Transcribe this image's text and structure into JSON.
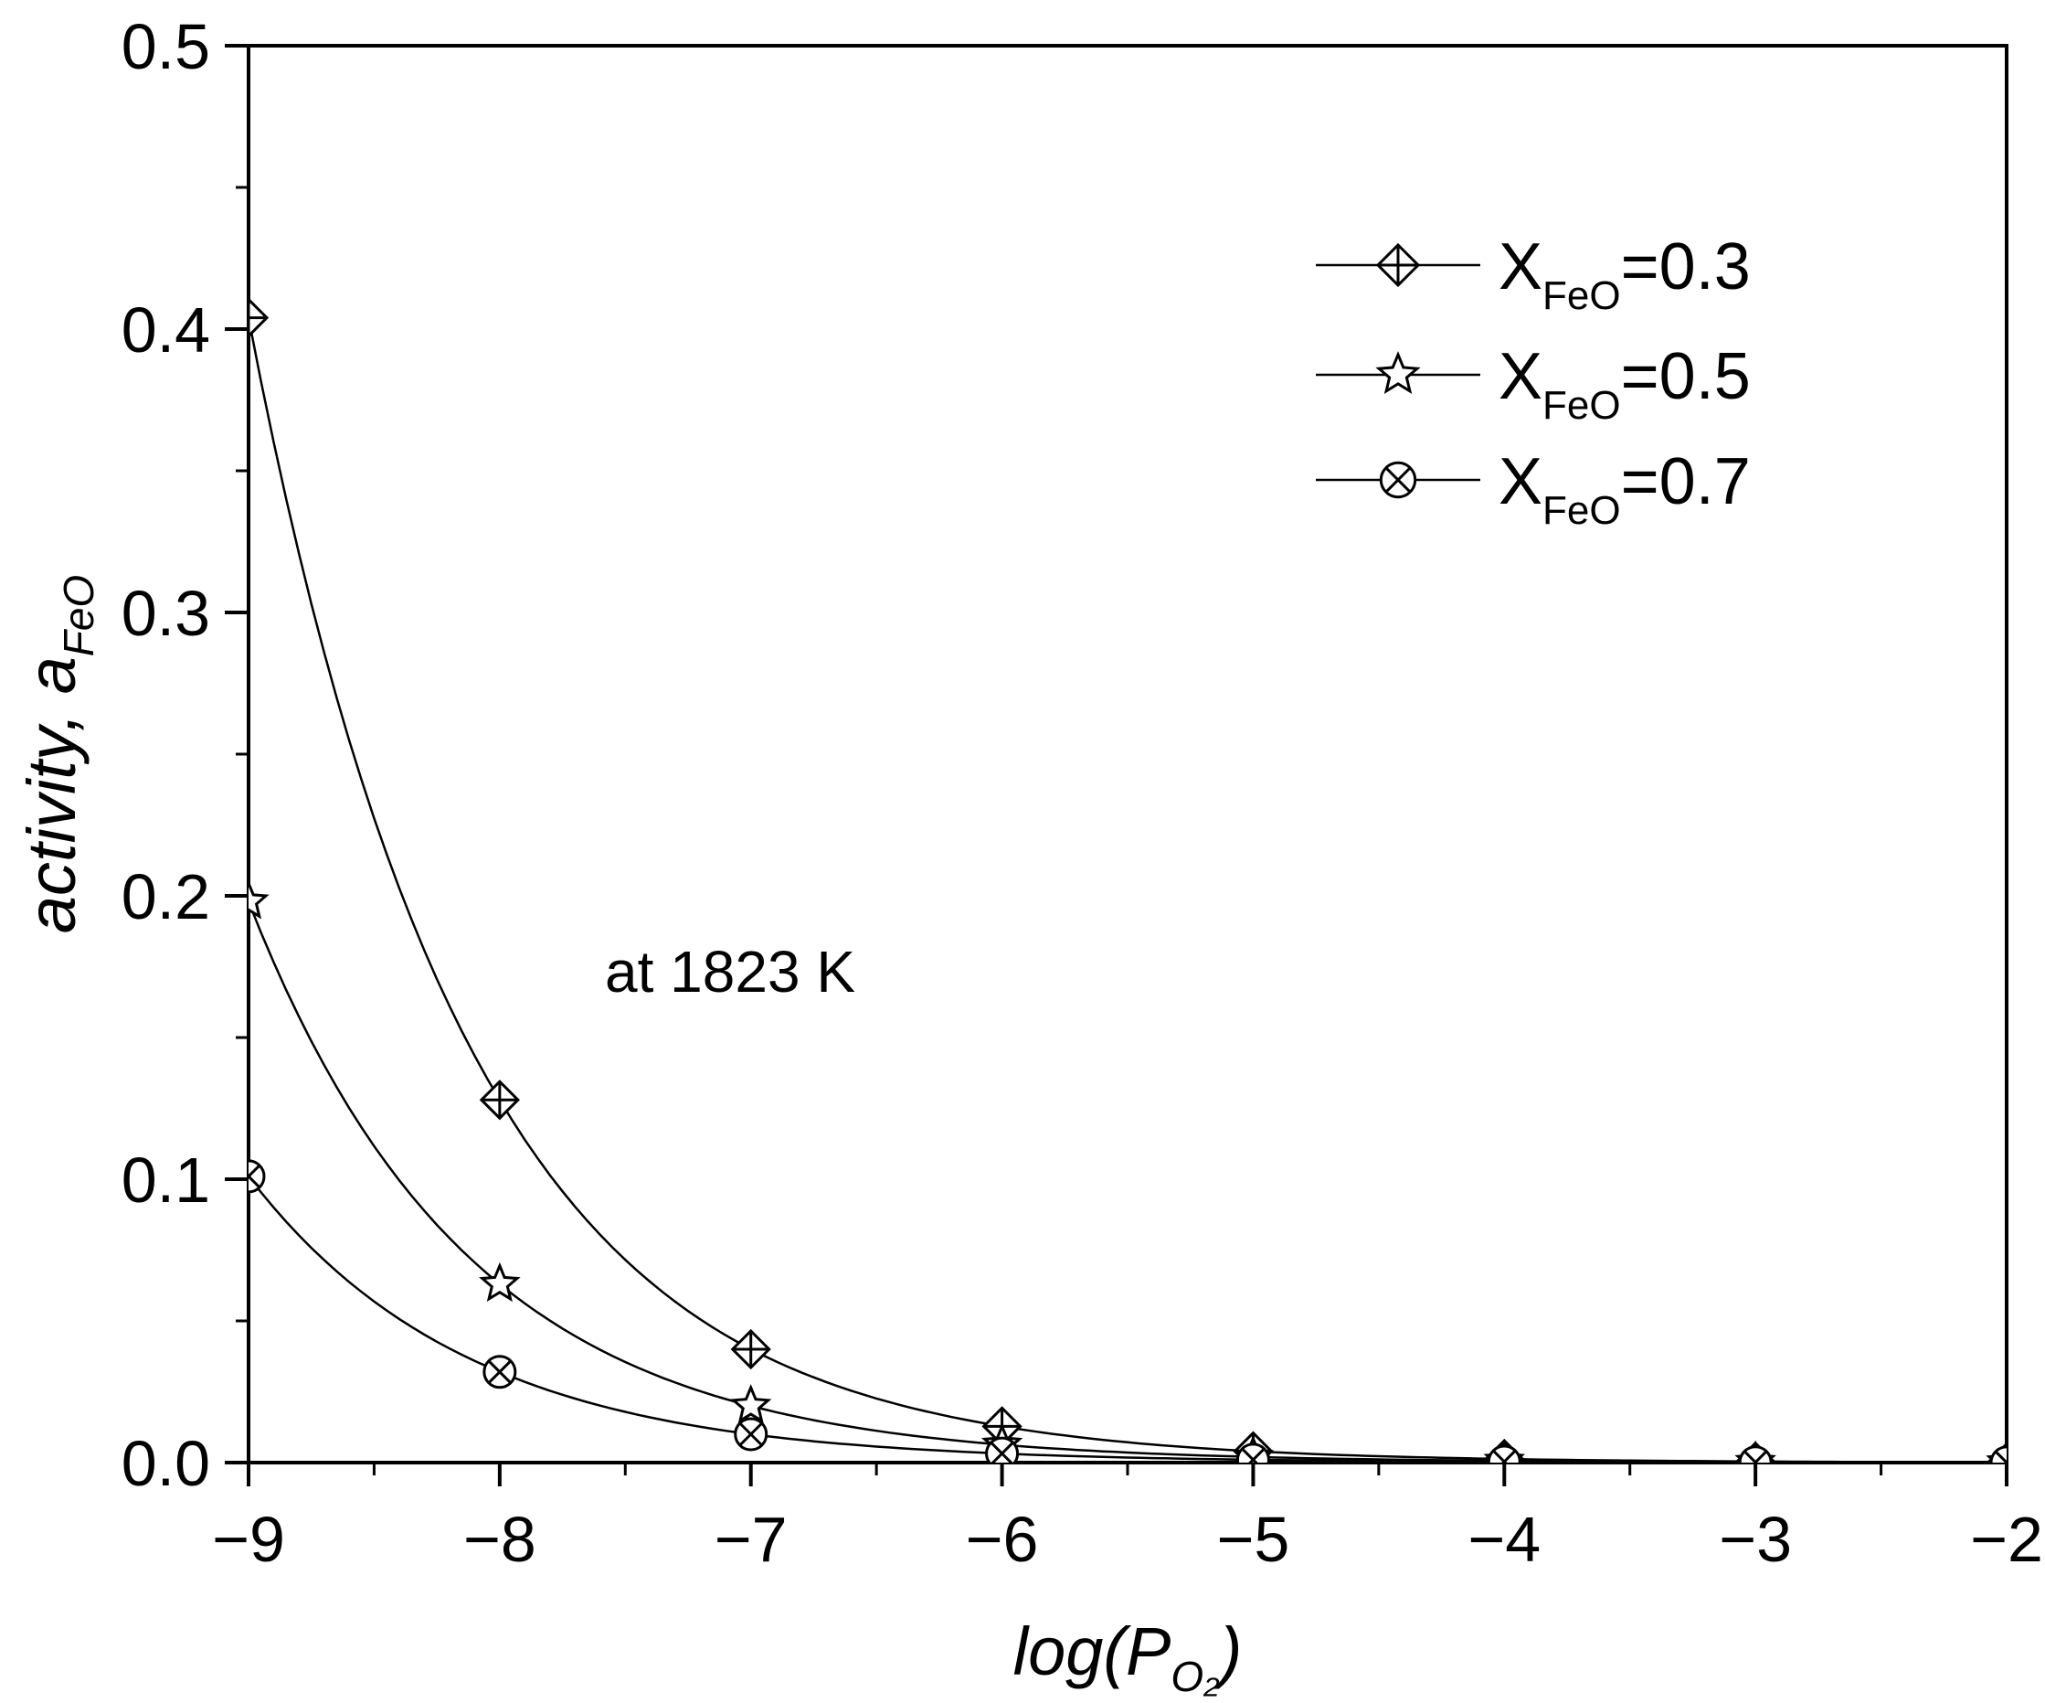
{
  "chart_data": {
    "type": "line",
    "xlabel": {
      "main": "log(P",
      "sub": "O₂",
      "close": ")"
    },
    "ylabel": {
      "main": "activity, a",
      "sub": "FeO"
    },
    "xlim": [
      -9,
      -2
    ],
    "ylim": [
      0,
      0.5
    ],
    "xticks": [
      -9,
      -8,
      -7,
      -6,
      -5,
      -4,
      -3,
      -2
    ],
    "xtick_labels": [
      "−9",
      "−8",
      "−7",
      "−6",
      "−5",
      "−4",
      "−3",
      "−2"
    ],
    "yticks": [
      0,
      0.1,
      0.2,
      0.3,
      0.4,
      0.5
    ],
    "ytick_labels": [
      "0.0",
      "0.1",
      "0.2",
      "0.3",
      "0.4",
      "0.5"
    ],
    "annotation": "at 1823 K",
    "legend_position": "top-right",
    "grid": false,
    "x": [
      -9,
      -8,
      -7,
      -6,
      -5,
      -4,
      -3,
      -2
    ],
    "series": [
      {
        "name": "X_FeO=0.3",
        "label_main": "X",
        "label_sub": "FeO",
        "label_value": "=0.3",
        "marker": "diamond-plus",
        "values": [
          0.404,
          0.128,
          0.04,
          0.0128,
          0.004,
          0.00128,
          0.0004,
          0.000128
        ]
      },
      {
        "name": "X_FeO=0.5",
        "label_main": "X",
        "label_sub": "FeO",
        "label_value": "=0.5",
        "marker": "star",
        "values": [
          0.198,
          0.063,
          0.02,
          0.0063,
          0.002,
          0.00063,
          0.0002,
          6.3e-05
        ]
      },
      {
        "name": "X_FeO=0.7",
        "label_main": "X",
        "label_sub": "FeO",
        "label_value": "=0.7",
        "marker": "circle-x",
        "values": [
          0.101,
          0.032,
          0.01,
          0.0032,
          0.001,
          0.00032,
          0.0001,
          3.2e-05
        ]
      }
    ]
  }
}
